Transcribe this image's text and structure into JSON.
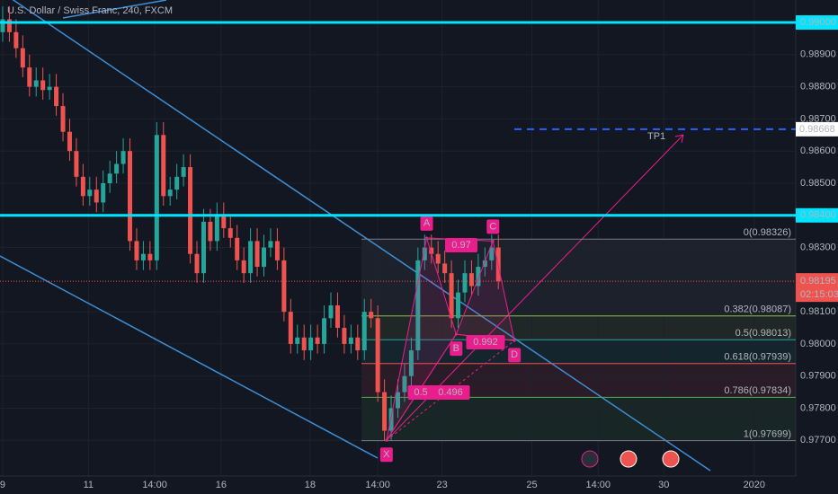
{
  "chart_data": {
    "type": "candlestick",
    "title": "U.S. Dollar / Swiss Franc, 240, FXCM",
    "xlim": [
      -0.4,
      118.4
    ],
    "xticks": [
      {
        "value": 0,
        "label": "9"
      },
      {
        "value": 12.8,
        "label": "11"
      },
      {
        "value": 22.7,
        "label": "14:00"
      },
      {
        "value": 32.6,
        "label": "16"
      },
      {
        "value": 45.9,
        "label": "18"
      },
      {
        "value": 56,
        "label": "14:00"
      },
      {
        "value": 65.6,
        "label": "23"
      },
      {
        "value": 79,
        "label": "25"
      },
      {
        "value": 88.9,
        "label": "14:00"
      },
      {
        "value": 98.7,
        "label": "30"
      },
      {
        "value": 112.2,
        "label": "2020"
      }
    ],
    "ylim": [
      0.97589,
      0.9907
    ],
    "yticks": [
      {
        "value": 0.977,
        "label": "0.97700"
      },
      {
        "value": 0.978,
        "label": "0.97800"
      },
      {
        "value": 0.979,
        "label": "0.97900"
      },
      {
        "value": 0.98,
        "label": "0.98000"
      },
      {
        "value": 0.981,
        "label": "0.98100"
      },
      {
        "value": 0.983,
        "label": "0.98300"
      },
      {
        "value": 0.985,
        "label": "0.98500"
      },
      {
        "value": 0.986,
        "label": "0.98600"
      },
      {
        "value": 0.987,
        "label": "0.98700"
      },
      {
        "value": 0.988,
        "label": "0.98800"
      },
      {
        "value": 0.989,
        "label": "0.98900"
      }
    ],
    "grid": true,
    "up_color": "#26a69a",
    "down_color": "#ef5350",
    "open": [
      0.9897,
      0.9901,
      0.9897,
      0.9892,
      0.9886,
      0.988,
      0.9882,
      0.9879,
      0.988,
      0.9874,
      0.9866,
      0.986,
      0.9852,
      0.9846,
      0.9848,
      0.9844,
      0.985,
      0.9853,
      0.9856,
      0.986,
      0.9832,
      0.9826,
      0.9828,
      0.9826,
      0.9865,
      0.9846,
      0.9848,
      0.9852,
      0.9855,
      0.9828,
      0.9822,
      0.9838,
      0.9832,
      0.984,
      0.9836,
      0.9833,
      0.9826,
      0.9822,
      0.9832,
      0.9824,
      0.983,
      0.9832,
      0.9826,
      0.981,
      0.98,
      0.9802,
      0.9798,
      0.9802,
      0.98,
      0.9808,
      0.9812,
      0.9805,
      0.98,
      0.9802,
      0.9798,
      0.981,
      0.9808,
      0.9785,
      0.9773,
      0.978,
      0.9785,
      0.979,
      0.9798,
      0.9826,
      0.983,
      0.9828,
      0.9825,
      0.9822,
      0.9808,
      0.9816,
      0.9822,
      0.9818,
      0.9824,
      0.9826,
      0.983
    ],
    "high": [
      0.9905,
      0.9905,
      0.9901,
      0.9896,
      0.989,
      0.9886,
      0.9886,
      0.9884,
      0.9884,
      0.9878,
      0.987,
      0.9864,
      0.9856,
      0.9852,
      0.9852,
      0.9854,
      0.9857,
      0.986,
      0.9864,
      0.9864,
      0.9836,
      0.9832,
      0.9832,
      0.9869,
      0.9869,
      0.9852,
      0.9856,
      0.9859,
      0.9859,
      0.9832,
      0.9842,
      0.9842,
      0.9844,
      0.9844,
      0.984,
      0.9837,
      0.983,
      0.9836,
      0.9836,
      0.9834,
      0.9836,
      0.9836,
      0.983,
      0.9814,
      0.9806,
      0.9806,
      0.9806,
      0.9806,
      0.9812,
      0.9816,
      0.9816,
      0.9809,
      0.9806,
      0.9806,
      0.9814,
      0.9814,
      0.9812,
      0.9789,
      0.9784,
      0.9789,
      0.9794,
      0.9802,
      0.983,
      0.9834,
      0.9834,
      0.9832,
      0.9829,
      0.9826,
      0.982,
      0.9826,
      0.9826,
      0.9828,
      0.983,
      0.9834,
      0.9834
    ],
    "low": [
      0.9894,
      0.9894,
      0.9889,
      0.9883,
      0.9877,
      0.9877,
      0.9876,
      0.9876,
      0.9871,
      0.9863,
      0.9857,
      0.9849,
      0.9843,
      0.9843,
      0.9841,
      0.9841,
      0.9847,
      0.985,
      0.9853,
      0.9829,
      0.9823,
      0.9823,
      0.9823,
      0.9823,
      0.9843,
      0.9843,
      0.9845,
      0.9849,
      0.9825,
      0.9819,
      0.9819,
      0.9829,
      0.9829,
      0.9833,
      0.983,
      0.9823,
      0.9819,
      0.9819,
      0.9821,
      0.9821,
      0.9827,
      0.9823,
      0.9807,
      0.9797,
      0.9797,
      0.9795,
      0.9795,
      0.9797,
      0.9797,
      0.9805,
      0.9802,
      0.9797,
      0.9797,
      0.9795,
      0.9795,
      0.9805,
      0.9782,
      0.977,
      0.977,
      0.9777,
      0.9782,
      0.9787,
      0.9795,
      0.9823,
      0.9825,
      0.9822,
      0.9819,
      0.9805,
      0.9805,
      0.9813,
      0.9815,
      0.9815,
      0.9821,
      0.9823,
      0.9817
    ],
    "close": [
      0.9901,
      0.9897,
      0.9892,
      0.9886,
      0.988,
      0.9882,
      0.9879,
      0.988,
      0.9874,
      0.9866,
      0.986,
      0.9852,
      0.9846,
      0.9848,
      0.9844,
      0.985,
      0.9853,
      0.9856,
      0.986,
      0.9832,
      0.9826,
      0.9828,
      0.9826,
      0.9865,
      0.9846,
      0.9848,
      0.9852,
      0.9855,
      0.9828,
      0.9822,
      0.9838,
      0.9832,
      0.984,
      0.9836,
      0.9833,
      0.9826,
      0.9822,
      0.9832,
      0.9824,
      0.983,
      0.9832,
      0.9826,
      0.981,
      0.98,
      0.9802,
      0.9798,
      0.9802,
      0.98,
      0.9808,
      0.9812,
      0.9805,
      0.98,
      0.9802,
      0.9798,
      0.981,
      0.9808,
      0.9785,
      0.9773,
      0.978,
      0.9785,
      0.979,
      0.9798,
      0.9826,
      0.983,
      0.9828,
      0.9825,
      0.9822,
      0.9808,
      0.9816,
      0.9822,
      0.9818,
      0.9824,
      0.9826,
      0.983,
      0.98195
    ],
    "levels": [
      {
        "value": 0.99,
        "label": "0.99000",
        "color": "#00e5ff"
      },
      {
        "value": 0.984,
        "label": "0.98400",
        "color": "#00e5ff"
      }
    ],
    "target": {
      "value": 0.98668,
      "label": "0.98668",
      "name": "TP1",
      "color": "#2962ff"
    },
    "last": {
      "value": 0.98195,
      "label": "0.98195",
      "countdown": "02:15:03",
      "color": "#ef5350"
    },
    "fib": [
      {
        "value": 0.98326,
        "label": "0(0.98326)",
        "color": "#787b86"
      },
      {
        "value": 0.98087,
        "label": "0.382(0.98087)",
        "color": "#8bc34a"
      },
      {
        "value": 0.98013,
        "label": "0.5(0.98013)",
        "color": "#26a69a"
      },
      {
        "value": 0.97939,
        "label": "0.618(0.97939)",
        "color": "#ef5350"
      },
      {
        "value": 0.97834,
        "label": "0.786(0.97834)",
        "color": "#4caf50"
      },
      {
        "value": 0.97699,
        "label": "1(0.97699)",
        "color": "#787b86"
      }
    ],
    "pattern": [
      {
        "name": "X",
        "x": 57.3,
        "y": 0.977
      },
      {
        "name": "A",
        "x": 63.3,
        "y": 0.9833
      },
      {
        "name": "B",
        "x": 67.7,
        "y": 0.9803
      },
      {
        "name": "C",
        "x": 73.2,
        "y": 0.9832
      },
      {
        "name": "D",
        "x": 76.4,
        "y": 0.9801
      }
    ],
    "ratios": [
      0.97,
      0.992,
      0.5,
      0.496
    ],
    "pattern_color": "#e91e8c"
  }
}
